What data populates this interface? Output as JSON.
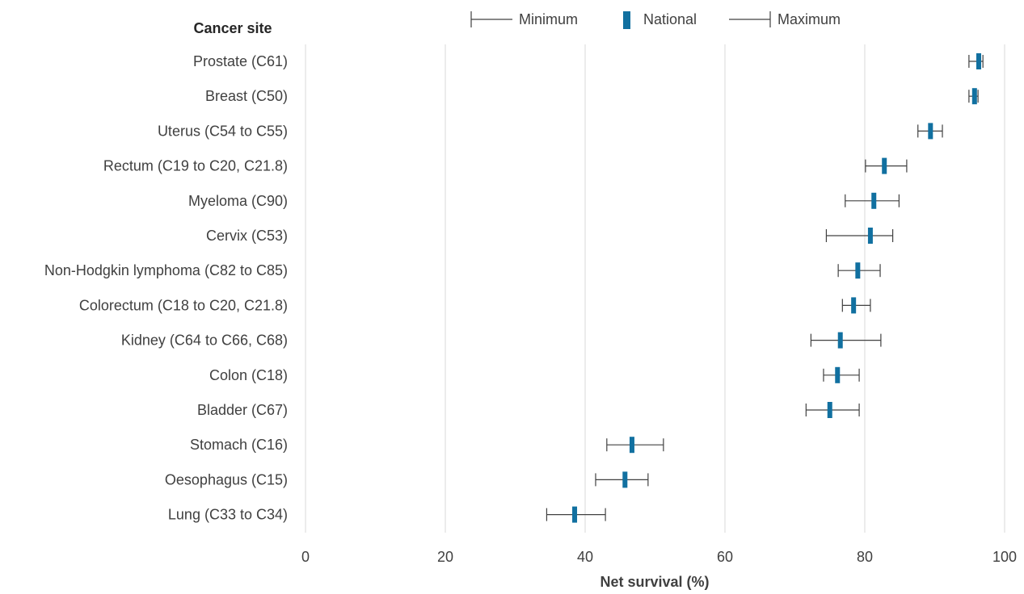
{
  "colors": {
    "national": "#1170a0",
    "whisker": "#404040",
    "grid": "#d9d9d9",
    "text": "#404040"
  },
  "chart_data": {
    "type": "scatter",
    "variant": "range-with-marker",
    "category_axis_title": "Cancer site",
    "xlabel": "Net survival  (%)",
    "xlim": [
      0,
      100
    ],
    "xticks": [
      0,
      20,
      40,
      60,
      80,
      100
    ],
    "grid": "vertical",
    "legend_position": "top",
    "legend": [
      {
        "key": "min",
        "label": "Minimum",
        "marker": "left-whisker"
      },
      {
        "key": "national",
        "label": "National",
        "marker": "bar"
      },
      {
        "key": "max",
        "label": "Maximum",
        "marker": "right-whisker"
      }
    ],
    "categories": [
      "Prostate (C61)",
      "Breast (C50)",
      "Uterus (C54 to C55)",
      "Rectum (C19 to C20, C21.8)",
      "Myeloma (C90)",
      "Cervix (C53)",
      "Non-Hodgkin lymphoma (C82 to C85)",
      "Colorectum (C18 to C20, C21.8)",
      "Kidney (C64 to C66, C68)",
      "Colon (C18)",
      "Bladder (C67)",
      "Stomach (C16)",
      "Oesophagus (C15)",
      "Lung (C33 to C34)"
    ],
    "series": [
      {
        "name": "Minimum",
        "values": [
          94.9,
          94.9,
          87.6,
          80.1,
          77.2,
          74.5,
          76.2,
          76.8,
          72.3,
          74.1,
          71.6,
          43.1,
          41.5,
          34.5
        ]
      },
      {
        "name": "National",
        "values": [
          96.3,
          95.7,
          89.4,
          82.8,
          81.3,
          80.8,
          79.0,
          78.4,
          76.5,
          76.1,
          75.0,
          46.7,
          45.7,
          38.5
        ]
      },
      {
        "name": "Maximum",
        "values": [
          96.9,
          96.2,
          91.1,
          86.0,
          84.9,
          84.0,
          82.2,
          80.8,
          82.3,
          79.2,
          79.2,
          51.2,
          49.0,
          42.9
        ]
      }
    ]
  }
}
